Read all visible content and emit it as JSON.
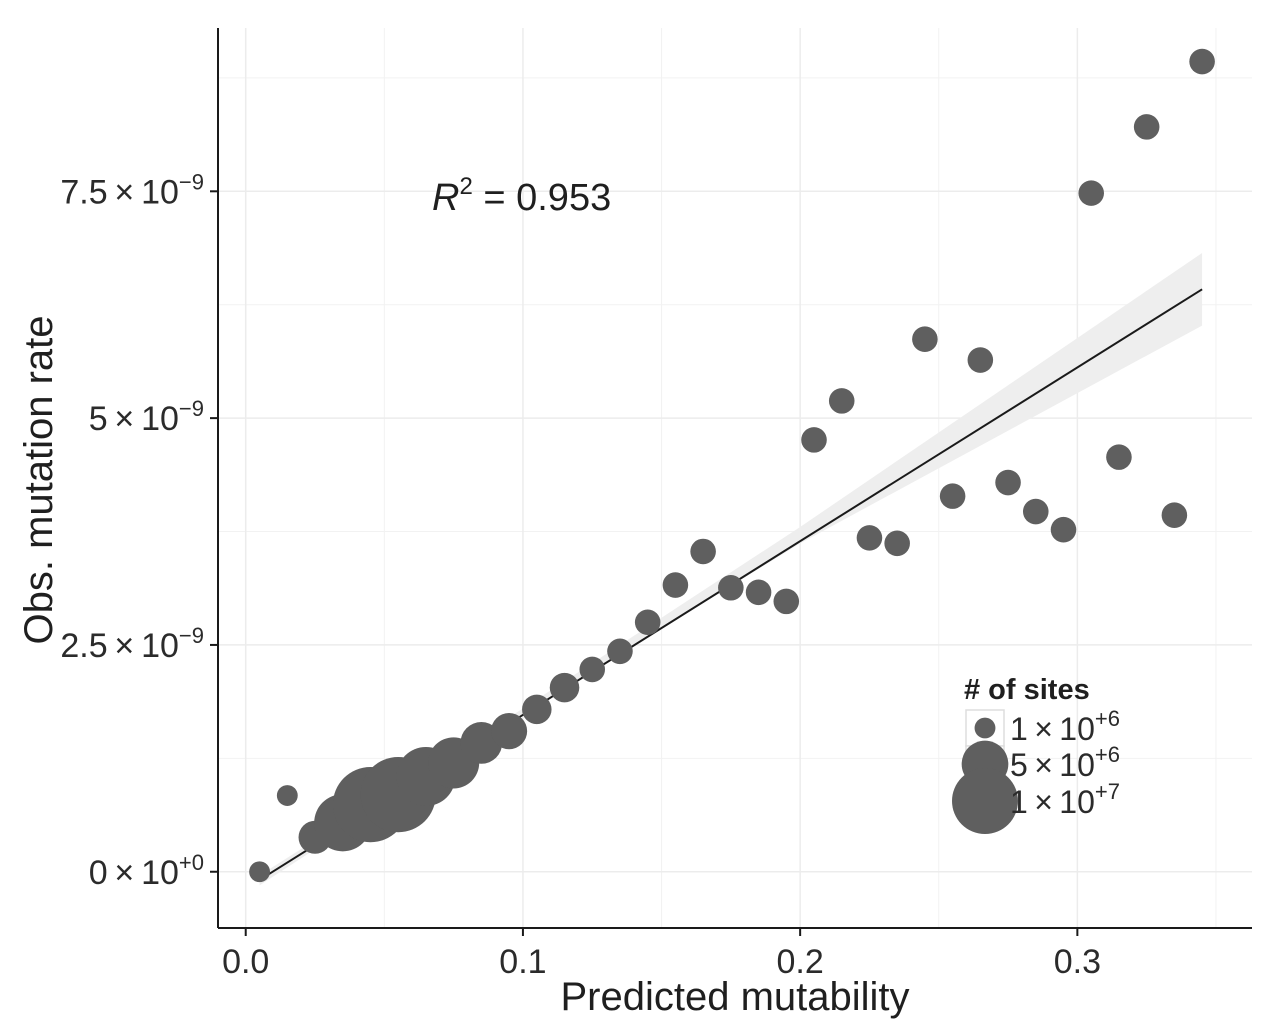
{
  "colors": {
    "point": "#5f5f5f",
    "fit_line": "#1a1a1a",
    "confidence_band": "#eeeeee",
    "grid": "#f2f2f2",
    "axis": "#1a1a1a"
  },
  "chart_data": {
    "type": "scatter",
    "xlabel": "Predicted mutability",
    "ylabel": "Obs. mutation rate",
    "xlim": [
      -0.01,
      0.363
    ],
    "ylim": [
      -6.2e-10,
      9.3e-09
    ],
    "x_ticks": [
      {
        "value": 0.0,
        "label": "0.0"
      },
      {
        "value": 0.1,
        "label": "0.1"
      },
      {
        "value": 0.2,
        "label": "0.2"
      },
      {
        "value": 0.3,
        "label": "0.3"
      }
    ],
    "y_ticks": [
      {
        "value": 0,
        "mantissa": "0",
        "exponent": "+0"
      },
      {
        "value": 2.5e-09,
        "mantissa": "2.5",
        "exponent": "−9"
      },
      {
        "value": 5e-09,
        "mantissa": "5",
        "exponent": "−9"
      },
      {
        "value": 7.5e-09,
        "mantissa": "7.5",
        "exponent": "−9"
      }
    ],
    "grid": true,
    "annotation": {
      "base": "R",
      "power": "2",
      "rest": " = 0.953"
    },
    "fit_line": {
      "x": [
        0.005,
        0.345
      ],
      "y": [
        -9e-11,
        6.42e-09
      ]
    },
    "confidence_band": {
      "x": [
        0.005,
        0.1,
        0.2,
        0.345
      ],
      "upper": [
        -4e-11,
        1.8e-09,
        3.8e-09,
        6.82e-09
      ],
      "lower": [
        -1.5e-10,
        1.74e-09,
        3.62e-09,
        6.02e-09
      ]
    },
    "size_legend": {
      "title": "# of sites",
      "entries": [
        {
          "sites": 1000000,
          "mantissa": "1",
          "exponent": "+6"
        },
        {
          "sites": 5000000,
          "mantissa": "5",
          "exponent": "+6"
        },
        {
          "sites": 10000000,
          "mantissa": "1",
          "exponent": "+7"
        }
      ],
      "position": "bottom-right"
    },
    "points": [
      {
        "x": 0.005,
        "y": 0.0,
        "sites": 1000000
      },
      {
        "x": 0.015,
        "y": 8.4e-10,
        "sites": 1000000
      },
      {
        "x": 0.025,
        "y": 3.8e-10,
        "sites": 2500000
      },
      {
        "x": 0.035,
        "y": 5.4e-10,
        "sites": 7500000
      },
      {
        "x": 0.045,
        "y": 7.4e-10,
        "sites": 13000000
      },
      {
        "x": 0.055,
        "y": 8.5e-10,
        "sites": 13000000
      },
      {
        "x": 0.065,
        "y": 1.05e-09,
        "sites": 8000000
      },
      {
        "x": 0.075,
        "y": 1.2e-09,
        "sites": 6000000
      },
      {
        "x": 0.085,
        "y": 1.42e-09,
        "sites": 4000000
      },
      {
        "x": 0.095,
        "y": 1.55e-09,
        "sites": 3000000
      },
      {
        "x": 0.105,
        "y": 1.79e-09,
        "sites": 2000000
      },
      {
        "x": 0.115,
        "y": 2.03e-09,
        "sites": 2000000
      },
      {
        "x": 0.125,
        "y": 2.23e-09,
        "sites": 1500000
      },
      {
        "x": 0.135,
        "y": 2.43e-09,
        "sites": 1500000
      },
      {
        "x": 0.145,
        "y": 2.75e-09,
        "sites": 1500000
      },
      {
        "x": 0.155,
        "y": 3.16e-09,
        "sites": 1500000
      },
      {
        "x": 0.165,
        "y": 3.53e-09,
        "sites": 1500000
      },
      {
        "x": 0.175,
        "y": 3.13e-09,
        "sites": 1500000
      },
      {
        "x": 0.185,
        "y": 3.08e-09,
        "sites": 1500000
      },
      {
        "x": 0.195,
        "y": 2.98e-09,
        "sites": 1500000
      },
      {
        "x": 0.205,
        "y": 4.76e-09,
        "sites": 1500000
      },
      {
        "x": 0.215,
        "y": 5.19e-09,
        "sites": 1500000
      },
      {
        "x": 0.225,
        "y": 3.68e-09,
        "sites": 1500000
      },
      {
        "x": 0.235,
        "y": 3.62e-09,
        "sites": 1500000
      },
      {
        "x": 0.245,
        "y": 5.87e-09,
        "sites": 1500000
      },
      {
        "x": 0.255,
        "y": 4.14e-09,
        "sites": 1500000
      },
      {
        "x": 0.265,
        "y": 5.64e-09,
        "sites": 1500000
      },
      {
        "x": 0.275,
        "y": 4.29e-09,
        "sites": 1500000
      },
      {
        "x": 0.285,
        "y": 3.97e-09,
        "sites": 1500000
      },
      {
        "x": 0.295,
        "y": 3.77e-09,
        "sites": 1500000
      },
      {
        "x": 0.305,
        "y": 7.48e-09,
        "sites": 1500000
      },
      {
        "x": 0.315,
        "y": 4.57e-09,
        "sites": 1500000
      },
      {
        "x": 0.325,
        "y": 8.21e-09,
        "sites": 1500000
      },
      {
        "x": 0.335,
        "y": 3.93e-09,
        "sites": 1500000
      },
      {
        "x": 0.345,
        "y": 8.93e-09,
        "sites": 1500000
      }
    ]
  }
}
